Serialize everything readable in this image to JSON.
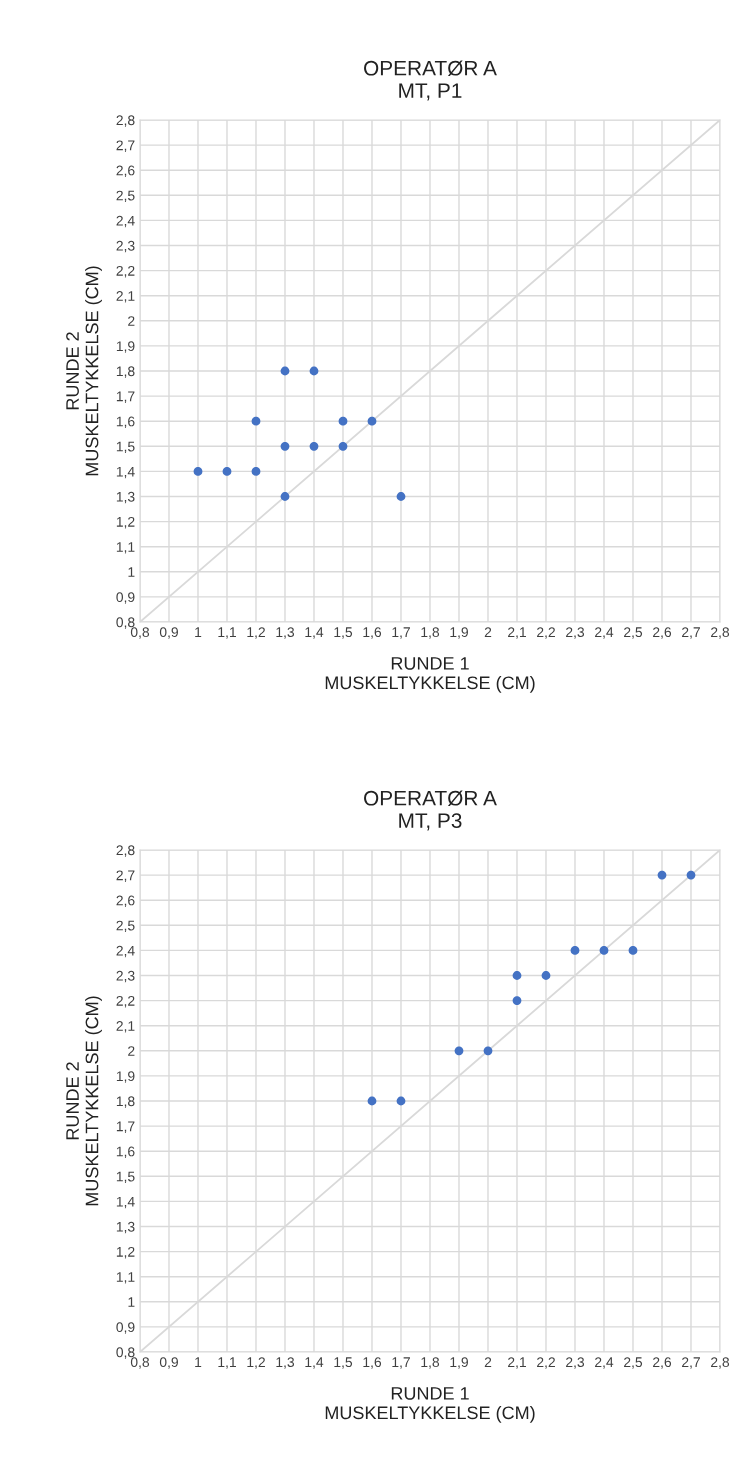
{
  "chart_data": [
    {
      "type": "scatter",
      "title": "OPERATØR A\nMT, P1",
      "xlabel": "RUNDE 1\nMUSKELTYKKELSE (CM)",
      "ylabel": "RUNDE 2\nMUSKELTYKKELSE (CM)",
      "xlim": [
        0.8,
        2.8
      ],
      "ylim": [
        0.8,
        2.8
      ],
      "xticks": [
        {
          "value": 0.8,
          "label": "0,8"
        },
        {
          "value": 0.9,
          "label": "0,9"
        },
        1,
        {
          "value": 1.1,
          "label": "1,1"
        },
        {
          "value": 1.2,
          "label": "1,2"
        },
        {
          "value": 1.3,
          "label": "1,3"
        },
        {
          "value": 1.4,
          "label": "1,4"
        },
        {
          "value": 1.5,
          "label": "1,5"
        },
        {
          "value": 1.6,
          "label": "1,6"
        },
        {
          "value": 1.7,
          "label": "1,7"
        },
        {
          "value": 1.8,
          "label": "1,8"
        },
        {
          "value": 1.9,
          "label": "1,9"
        },
        2,
        {
          "value": 2.1,
          "label": "2,1"
        },
        {
          "value": 2.2,
          "label": "2,2"
        },
        {
          "value": 2.3,
          "label": "2,3"
        },
        {
          "value": 2.4,
          "label": "2,4"
        },
        {
          "value": 2.5,
          "label": "2,5"
        },
        {
          "value": 2.6,
          "label": "2,6"
        },
        {
          "value": 2.7,
          "label": "2,7"
        },
        {
          "value": 2.8,
          "label": "2,8"
        }
      ],
      "yticks": [
        {
          "value": 0.8,
          "label": "0,8"
        },
        {
          "value": 0.9,
          "label": "0,9"
        },
        1,
        {
          "value": 1.1,
          "label": "1,1"
        },
        {
          "value": 1.2,
          "label": "1,2"
        },
        {
          "value": 1.3,
          "label": "1,3"
        },
        {
          "value": 1.4,
          "label": "1,4"
        },
        {
          "value": 1.5,
          "label": "1,5"
        },
        {
          "value": 1.6,
          "label": "1,6"
        },
        {
          "value": 1.7,
          "label": "1,7"
        },
        {
          "value": 1.8,
          "label": "1,8"
        },
        {
          "value": 1.9,
          "label": "1,9"
        },
        2,
        {
          "value": 2.1,
          "label": "2,1"
        },
        {
          "value": 2.2,
          "label": "2,2"
        },
        {
          "value": 2.3,
          "label": "2,3"
        },
        {
          "value": 2.4,
          "label": "2,4"
        },
        {
          "value": 2.5,
          "label": "2,5"
        },
        {
          "value": 2.6,
          "label": "2,6"
        },
        {
          "value": 2.7,
          "label": "2,7"
        },
        {
          "value": 2.8,
          "label": "2,8"
        }
      ],
      "grid": true,
      "series": [
        {
          "type": "line",
          "color": "#d9d9d9",
          "x": [
            0.8,
            2.8
          ],
          "values": [
            0.8,
            2.8
          ]
        },
        {
          "marker": "circle",
          "color": "#4472c4",
          "x": [
            1.0,
            1.1,
            1.2,
            1.2,
            1.3,
            1.3,
            1.3,
            1.4,
            1.4,
            1.5,
            1.5,
            1.6,
            1.7
          ],
          "values": [
            1.4,
            1.4,
            1.4,
            1.6,
            1.8,
            1.5,
            1.3,
            1.8,
            1.5,
            1.6,
            1.5,
            1.6,
            1.3
          ]
        }
      ]
    },
    {
      "type": "scatter",
      "title": "OPERATØR A\nMT, P3",
      "xlabel": "RUNDE 1\nMUSKELTYKKELSE (CM)",
      "ylabel": "RUNDE 2\nMUSKELTYKKELSE (CM)",
      "xlim": [
        0.8,
        2.8
      ],
      "ylim": [
        0.8,
        2.8
      ],
      "xticks": [
        {
          "value": 0.8,
          "label": "0,8"
        },
        {
          "value": 0.9,
          "label": "0,9"
        },
        1,
        {
          "value": 1.1,
          "label": "1,1"
        },
        {
          "value": 1.2,
          "label": "1,2"
        },
        {
          "value": 1.3,
          "label": "1,3"
        },
        {
          "value": 1.4,
          "label": "1,4"
        },
        {
          "value": 1.5,
          "label": "1,5"
        },
        {
          "value": 1.6,
          "label": "1,6"
        },
        {
          "value": 1.7,
          "label": "1,7"
        },
        {
          "value": 1.8,
          "label": "1,8"
        },
        {
          "value": 1.9,
          "label": "1,9"
        },
        2,
        {
          "value": 2.1,
          "label": "2,1"
        },
        {
          "value": 2.2,
          "label": "2,2"
        },
        {
          "value": 2.3,
          "label": "2,3"
        },
        {
          "value": 2.4,
          "label": "2,4"
        },
        {
          "value": 2.5,
          "label": "2,5"
        },
        {
          "value": 2.6,
          "label": "2,6"
        },
        {
          "value": 2.7,
          "label": "2,7"
        },
        {
          "value": 2.8,
          "label": "2,8"
        }
      ],
      "yticks": [
        {
          "value": 0.8,
          "label": "0,8"
        },
        {
          "value": 0.9,
          "label": "0,9"
        },
        1,
        {
          "value": 1.1,
          "label": "1,1"
        },
        {
          "value": 1.2,
          "label": "1,2"
        },
        {
          "value": 1.3,
          "label": "1,3"
        },
        {
          "value": 1.4,
          "label": "1,4"
        },
        {
          "value": 1.5,
          "label": "1,5"
        },
        {
          "value": 1.6,
          "label": "1,6"
        },
        {
          "value": 1.7,
          "label": "1,7"
        },
        {
          "value": 1.8,
          "label": "1,8"
        },
        {
          "value": 1.9,
          "label": "1,9"
        },
        2,
        {
          "value": 2.1,
          "label": "2,1"
        },
        {
          "value": 2.2,
          "label": "2,2"
        },
        {
          "value": 2.3,
          "label": "2,3"
        },
        {
          "value": 2.4,
          "label": "2,4"
        },
        {
          "value": 2.5,
          "label": "2,5"
        },
        {
          "value": 2.6,
          "label": "2,6"
        },
        {
          "value": 2.7,
          "label": "2,7"
        },
        {
          "value": 2.8,
          "label": "2,8"
        }
      ],
      "grid": true,
      "series": [
        {
          "type": "line",
          "color": "#d9d9d9",
          "x": [
            0.8,
            2.8
          ],
          "values": [
            0.8,
            2.8
          ]
        },
        {
          "marker": "circle",
          "color": "#4472c4",
          "x": [
            1.6,
            1.7,
            1.9,
            2.0,
            2.1,
            2.1,
            2.2,
            2.3,
            2.4,
            2.5,
            2.6,
            2.7
          ],
          "values": [
            1.8,
            1.8,
            2.0,
            2.0,
            2.3,
            2.2,
            2.3,
            2.4,
            2.4,
            2.4,
            2.7,
            2.7
          ]
        }
      ]
    }
  ]
}
